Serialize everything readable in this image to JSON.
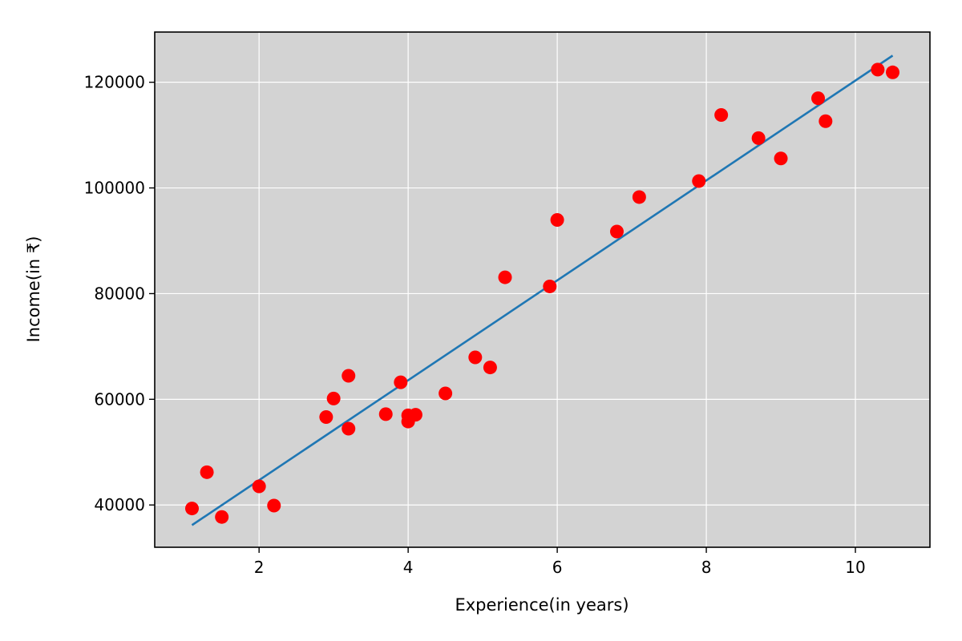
{
  "chart_data": {
    "type": "scatter",
    "title": "",
    "xlabel": "Experience(in years)",
    "ylabel": "Income(in ₹)",
    "xlim": [
      0.6,
      11.0
    ],
    "ylim": [
      32000,
      129500
    ],
    "xticks": [
      2,
      4,
      6,
      8,
      10
    ],
    "yticks": [
      40000,
      60000,
      80000,
      100000,
      120000
    ],
    "grid": true,
    "colors": {
      "background": "#d3d3d3",
      "points": "#ff0000",
      "fit_line": "#1f77b4",
      "grid": "#ffffff"
    },
    "series": [
      {
        "kind": "scatter",
        "x": [
          1.1,
          1.3,
          1.5,
          2.0,
          2.2,
          2.9,
          3.0,
          3.2,
          3.2,
          3.7,
          3.9,
          4.0,
          4.0,
          4.1,
          4.5,
          4.9,
          5.1,
          5.3,
          5.9,
          6.0,
          6.8,
          7.1,
          7.9,
          8.2,
          8.7,
          9.0,
          9.5,
          9.6,
          10.3,
          10.5
        ],
        "y": [
          39343,
          46205,
          37731,
          43525,
          39891,
          56642,
          60150,
          54445,
          64445,
          57189,
          63218,
          55794,
          56957,
          57081,
          61111,
          67938,
          66029,
          83088,
          81363,
          93940,
          91738,
          98273,
          101302,
          113812,
          109431,
          105582,
          116969,
          112635,
          122391,
          121872
        ]
      },
      {
        "kind": "line",
        "x": [
          1.1,
          10.5
        ],
        "y": [
          36188,
          125046
        ]
      }
    ]
  }
}
